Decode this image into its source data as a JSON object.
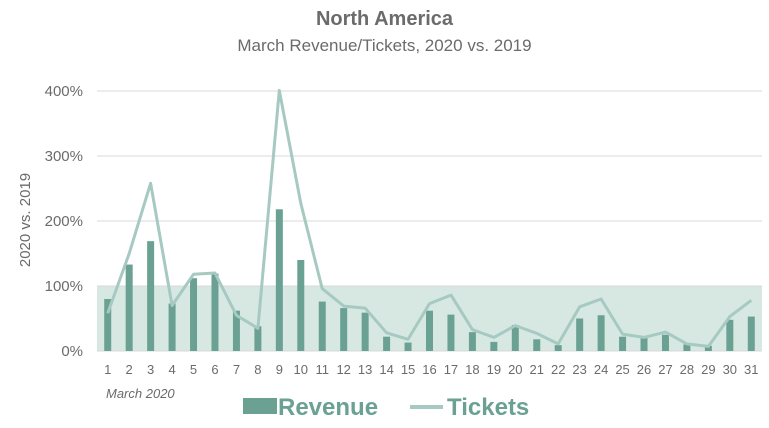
{
  "colors": {
    "revenue_bar": "#6aa193",
    "tickets_line": "#a6c9c1",
    "band": "#d7e8e3",
    "gridline": "#d9d9d9",
    "text": "#6b6b6b",
    "legend_text": "#6aa193"
  },
  "chart_data": {
    "type": "bar",
    "title": "North America",
    "subtitle": "March Revenue/Tickets, 2020 vs. 2019",
    "ylabel": "2020 vs. 2019",
    "xlabel": "March 2020",
    "ylim": [
      0,
      400
    ],
    "yticks": [
      "0%",
      "100%",
      "200%",
      "300%",
      "400%"
    ],
    "categories": [
      "1",
      "2",
      "3",
      "4",
      "5",
      "6",
      "7",
      "8",
      "9",
      "10",
      "11",
      "12",
      "13",
      "14",
      "15",
      "16",
      "17",
      "18",
      "19",
      "20",
      "21",
      "22",
      "23",
      "24",
      "25",
      "26",
      "27",
      "28",
      "29",
      "30",
      "31"
    ],
    "shaded_band": [
      0,
      100
    ],
    "grid": true,
    "legend_position": "bottom",
    "series": [
      {
        "name": "Revenue",
        "type": "bar",
        "values": [
          80,
          133,
          169,
          73,
          112,
          119,
          62,
          38,
          218,
          140,
          76,
          66,
          59,
          22,
          13,
          62,
          56,
          29,
          14,
          40,
          18,
          9,
          50,
          55,
          22,
          20,
          25,
          10,
          8,
          48,
          53
        ]
      },
      {
        "name": "Tickets",
        "type": "line",
        "values": [
          58,
          150,
          258,
          70,
          118,
          120,
          55,
          35,
          401,
          227,
          96,
          69,
          66,
          28,
          18,
          73,
          86,
          33,
          21,
          39,
          27,
          11,
          68,
          80,
          26,
          21,
          29,
          11,
          7,
          53,
          78
        ]
      }
    ]
  }
}
